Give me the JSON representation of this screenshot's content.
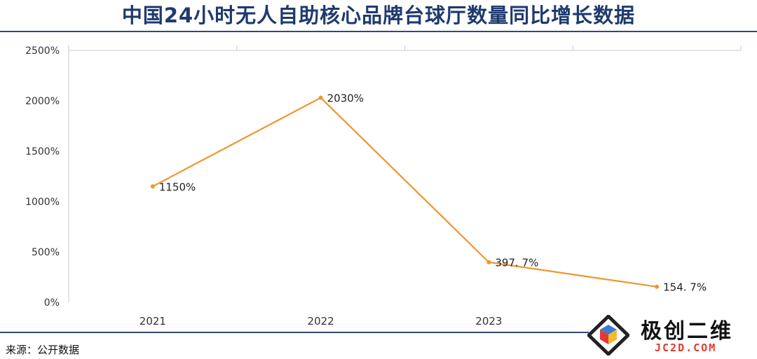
{
  "title": "中国24小时无人自助核心品牌台球厅数量同比增长数据",
  "source": "来源：公开数据",
  "logo": {
    "name": "极创二维",
    "url_text": "JC2D.COM"
  },
  "colors": {
    "title": "#1f3a6e",
    "line": "#f0962e",
    "axis": "#c8c8c8",
    "rule": "#2e4a7a"
  },
  "chart_data": {
    "type": "line",
    "categories": [
      "2021",
      "2022",
      "2023",
      ""
    ],
    "values": [
      1150,
      2030,
      397.7,
      154.7
    ],
    "data_labels": [
      "1150%",
      "2030%",
      "397. 7%",
      "154. 7%"
    ],
    "y_ticks": [
      0,
      500,
      1000,
      1500,
      2000,
      2500
    ],
    "y_tick_labels": [
      "0%",
      "500%",
      "1000%",
      "1500%",
      "2000%",
      "2500%"
    ],
    "ylim": [
      0,
      2500
    ],
    "grid": false,
    "legend": "none"
  }
}
